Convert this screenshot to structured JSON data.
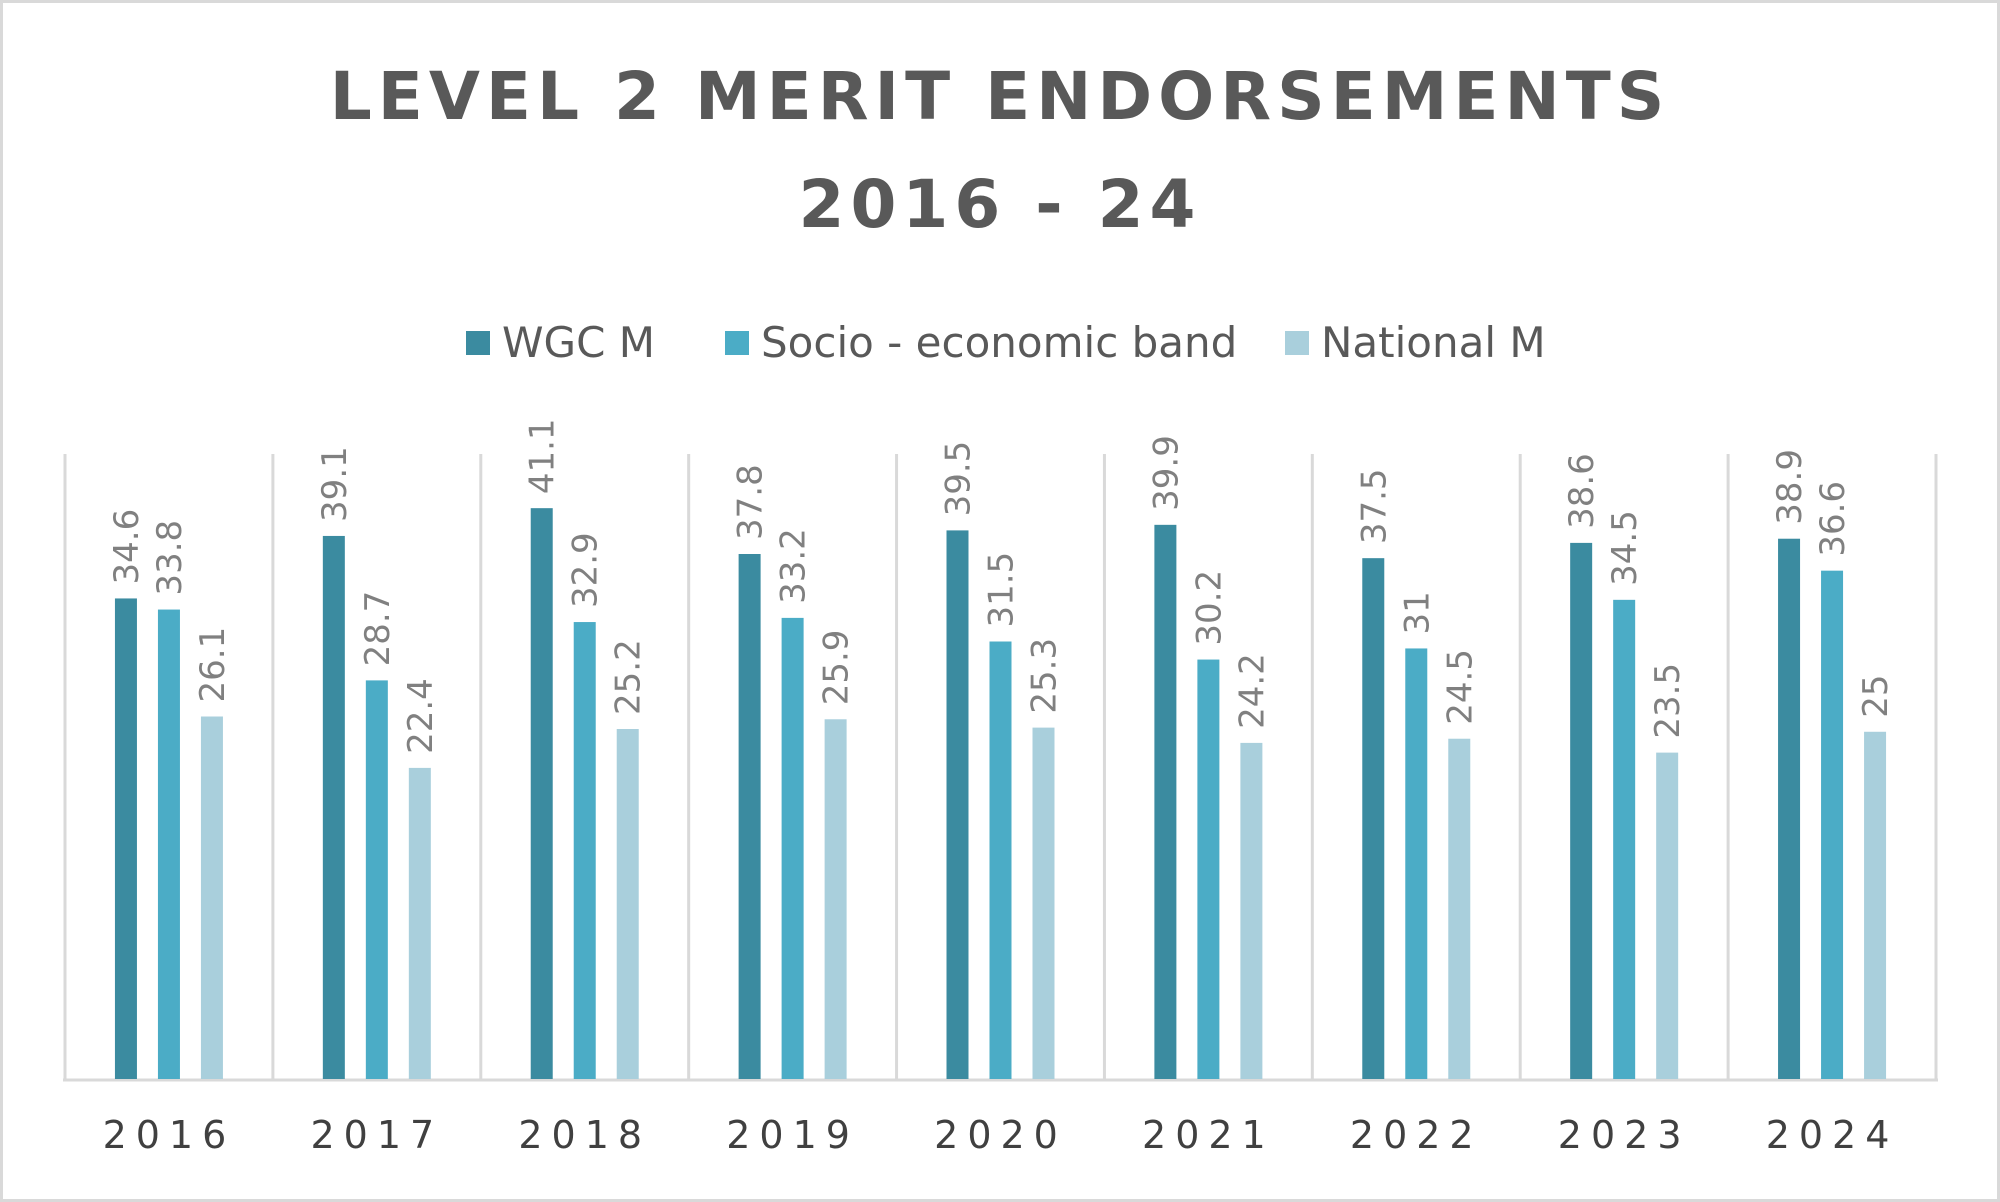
{
  "chart_data": {
    "type": "bar",
    "title": "LEVEL 2 MERIT ENDORSEMENTS",
    "subtitle": "2016 - 24",
    "categories": [
      "2016",
      "2017",
      "2018",
      "2019",
      "2020",
      "2021",
      "2022",
      "2023",
      "2024"
    ],
    "series": [
      {
        "name": "WGC M",
        "color": "#3b8ba0",
        "values": [
          34.6,
          39.1,
          41.1,
          37.8,
          39.5,
          39.9,
          37.5,
          38.6,
          38.9
        ]
      },
      {
        "name": "Socio - economic band",
        "color": "#4bacc6",
        "values": [
          33.8,
          28.7,
          32.9,
          33.2,
          31.5,
          30.2,
          31,
          34.5,
          36.6
        ]
      },
      {
        "name": "National M",
        "color": "#a9cfdc",
        "values": [
          26.1,
          22.4,
          25.2,
          25.9,
          25.3,
          24.2,
          24.5,
          23.5,
          25
        ]
      }
    ],
    "xlabel": "",
    "ylabel": "",
    "ylim": [
      0,
      45
    ],
    "grid": "vertical category separators",
    "legend": "top-center",
    "data_labels": true
  }
}
